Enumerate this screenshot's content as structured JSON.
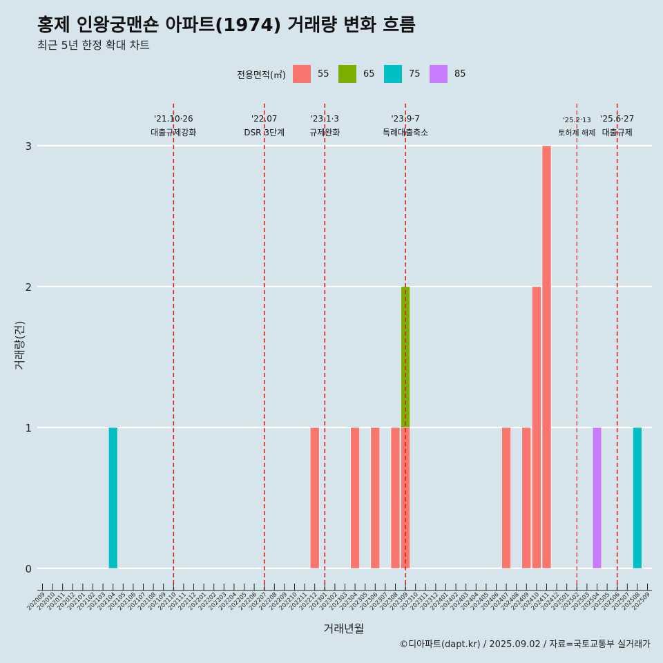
{
  "chart_data": {
    "type": "bar",
    "title": "홍제 인왕궁맨숀 아파트(1974) 거래량 변화 흐름",
    "subtitle": "최근 5년 한정 확대 차트",
    "xlabel": "거래년월",
    "ylabel": "거래량(건)",
    "caption": "©디아파트(dapt.kr) / 2025.09.02 / 자료=국토교통부 실거래가",
    "legend_title": "전용면적(㎡)",
    "legend_position": "top",
    "grid": "horizontal",
    "ylim": [
      0,
      3
    ],
    "y_ticks": [
      0,
      1,
      2,
      3
    ],
    "categories": [
      "202009",
      "202010",
      "202011",
      "202012",
      "202101",
      "202102",
      "202103",
      "202104",
      "202105",
      "202106",
      "202107",
      "202108",
      "202109",
      "202110",
      "202111",
      "202112",
      "202201",
      "202202",
      "202203",
      "202204",
      "202205",
      "202206",
      "202207",
      "202208",
      "202209",
      "202210",
      "202211",
      "202212",
      "202301",
      "202302",
      "202303",
      "202304",
      "202305",
      "202306",
      "202307",
      "202308",
      "202309",
      "202310",
      "202311",
      "202312",
      "202401",
      "202402",
      "202403",
      "202404",
      "202405",
      "202406",
      "202407",
      "202408",
      "202409",
      "202410",
      "202411",
      "202412",
      "202501",
      "202502",
      "202503",
      "202504",
      "202505",
      "202506",
      "202507",
      "202508",
      "202509"
    ],
    "series": [
      {
        "name": "55",
        "color": "#f8766d",
        "points": [
          [
            "202212",
            1
          ],
          [
            "202304",
            1
          ],
          [
            "202306",
            1
          ],
          [
            "202308",
            1
          ],
          [
            "202309",
            1
          ],
          [
            "202407",
            1
          ],
          [
            "202409",
            1
          ],
          [
            "202410",
            2
          ],
          [
            "202411",
            3
          ]
        ]
      },
      {
        "name": "65",
        "color": "#7cae00",
        "points": [
          [
            "202309",
            1
          ]
        ]
      },
      {
        "name": "75",
        "color": "#00bfc4",
        "points": [
          [
            "202104",
            1
          ],
          [
            "202508",
            1
          ]
        ]
      },
      {
        "name": "85",
        "color": "#c77cff",
        "points": [
          [
            "202504",
            1
          ]
        ]
      }
    ],
    "annotations": [
      {
        "category": "202110",
        "date": "'21.10·26",
        "label": "대출규제강화"
      },
      {
        "category": "202207",
        "date": "'22.07",
        "label": "DSR 3단계"
      },
      {
        "category": "202301",
        "date": "'23.1·3",
        "label": "규제완화"
      },
      {
        "category": "202309",
        "date": "'23.9·7",
        "label": "특례대출축소"
      },
      {
        "category": "202502",
        "date": "'25.2·13",
        "label": "토허제 해제"
      },
      {
        "category": "202506",
        "date": "'25.6·27",
        "label": "대출규제"
      }
    ],
    "annotation_color": "#e31a1c"
  }
}
